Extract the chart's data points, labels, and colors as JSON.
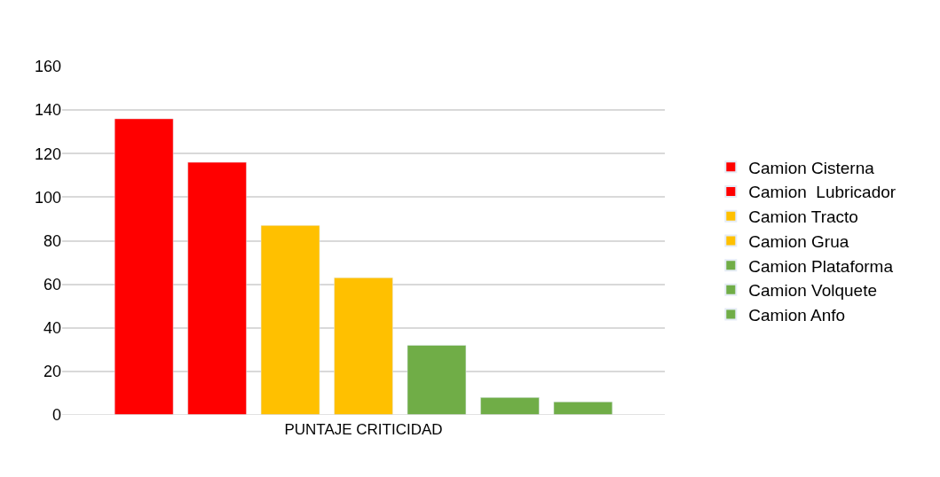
{
  "chart_data": {
    "type": "bar",
    "xlabel": "PUNTAJE CRITICIDAD",
    "categories": [
      null
    ],
    "series": [
      {
        "name": "Camion Cisterna",
        "color": "#ff0000",
        "values": [
          136
        ]
      },
      {
        "name": "Camion  Lubricador",
        "color": "#ff0000",
        "values": [
          116
        ]
      },
      {
        "name": "Camion Tracto",
        "color": "#ffc000",
        "values": [
          87
        ]
      },
      {
        "name": "Camion Grua",
        "color": "#ffc000",
        "values": [
          63
        ]
      },
      {
        "name": "Camion Plataforma",
        "color": "#70ad47",
        "values": [
          32
        ]
      },
      {
        "name": "Camion Volquete",
        "color": "#70ad47",
        "values": [
          8
        ]
      },
      {
        "name": "Camion Anfo",
        "color": "#70ad47",
        "values": [
          6
        ]
      }
    ],
    "ylim": [
      0,
      160
    ],
    "yticks": [
      0,
      20,
      40,
      60,
      80,
      100,
      120,
      140,
      160
    ],
    "grid": "y",
    "legend": "right"
  }
}
